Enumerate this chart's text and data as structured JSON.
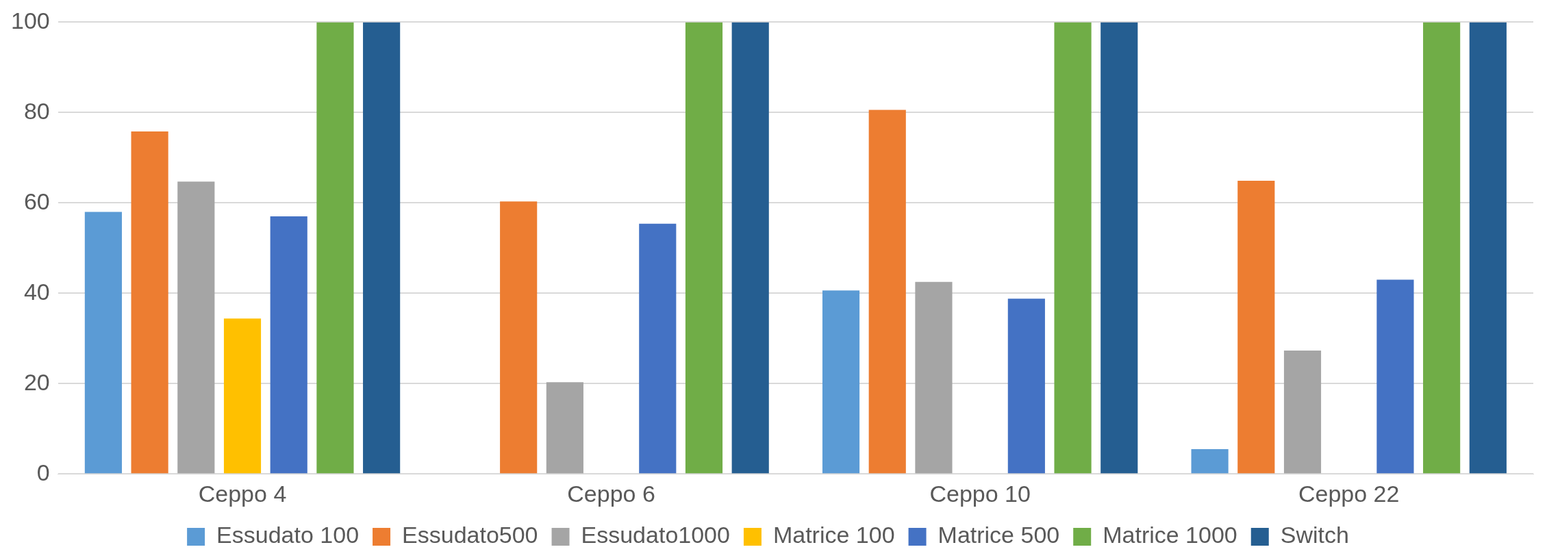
{
  "chart_data": {
    "type": "bar",
    "categories": [
      "Ceppo 4",
      "Ceppo 6",
      "Ceppo 10",
      "Ceppo 22"
    ],
    "series": [
      {
        "name": "Essudato 100",
        "color": "#5b9bd5",
        "values": [
          58,
          0,
          40.6,
          5.5
        ]
      },
      {
        "name": "Essudato500",
        "color": "#ed7d31",
        "values": [
          75.8,
          60.3,
          80.6,
          64.9
        ]
      },
      {
        "name": "Essudato1000",
        "color": "#a5a5a5",
        "values": [
          64.7,
          20.3,
          42.5,
          27.3
        ]
      },
      {
        "name": "Matrice 100",
        "color": "#ffc000",
        "values": [
          34.4,
          0,
          0,
          0
        ]
      },
      {
        "name": "Matrice 500",
        "color": "#4472c4",
        "values": [
          57,
          55.4,
          38.8,
          43
        ]
      },
      {
        "name": "Matrice 1000",
        "color": "#70ad47",
        "values": [
          100,
          100,
          100,
          100
        ]
      },
      {
        "name": "Switch",
        "color": "#255e91",
        "values": [
          100,
          100,
          100,
          100
        ]
      }
    ],
    "ylim": [
      0,
      100
    ],
    "yticks": [
      0,
      20,
      40,
      60,
      80,
      100
    ],
    "grid": "y",
    "legend": "bottom"
  }
}
